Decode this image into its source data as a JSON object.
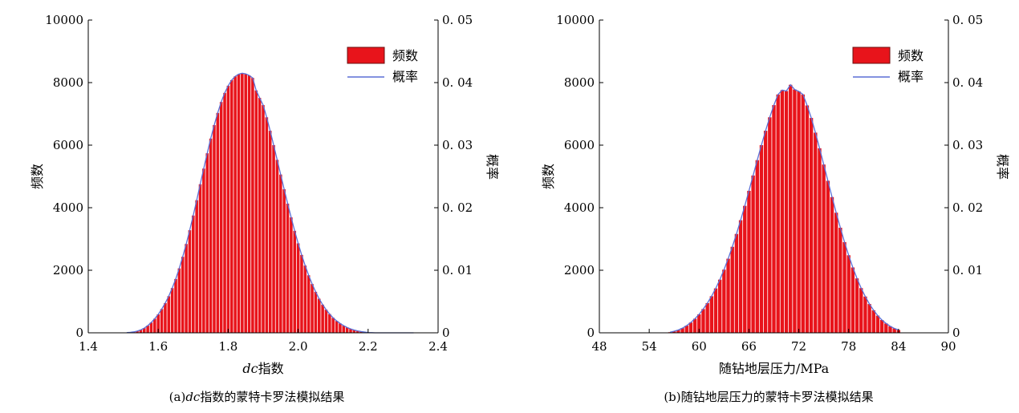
{
  "chart_data": [
    {
      "type": "bar",
      "caption_prefix": "(a)",
      "caption_italic": "dc",
      "caption_rest": "指数的蒙特卡罗法模拟结果",
      "xlabel_italic": "dc",
      "xlabel_rest": "指数",
      "ylabel": "频数",
      "y2label": "概率",
      "xlim": [
        1.4,
        2.4
      ],
      "xticks": [
        "1.4",
        "1.6",
        "1.8",
        "2.0",
        "2.2",
        "2.4"
      ],
      "ylim": [
        0,
        10000
      ],
      "yticks": [
        "0",
        "2000",
        "4000",
        "6000",
        "8000",
        "10000"
      ],
      "y2lim": [
        0,
        0.05
      ],
      "y2ticks": [
        "0",
        "0. 01",
        "0. 02",
        "0. 03",
        "0. 04",
        "0. 05"
      ],
      "legend": {
        "bar": "频数",
        "line": "概率",
        "placement": "top-right"
      },
      "bar_color": "#e8141b",
      "line_color": "#5b6fd6",
      "bin_width": 0.01,
      "x": [
        1.51,
        1.52,
        1.53,
        1.54,
        1.55,
        1.56,
        1.57,
        1.58,
        1.59,
        1.6,
        1.61,
        1.62,
        1.63,
        1.64,
        1.65,
        1.66,
        1.67,
        1.68,
        1.69,
        1.7,
        1.71,
        1.72,
        1.73,
        1.74,
        1.75,
        1.76,
        1.77,
        1.78,
        1.79,
        1.8,
        1.81,
        1.82,
        1.83,
        1.84,
        1.85,
        1.86,
        1.87,
        1.88,
        1.89,
        1.9,
        1.91,
        1.92,
        1.93,
        1.94,
        1.95,
        1.96,
        1.97,
        1.98,
        1.99,
        2.0,
        2.01,
        2.02,
        2.03,
        2.04,
        2.05,
        2.06,
        2.07,
        2.08,
        2.09,
        2.1,
        2.11,
        2.12,
        2.13,
        2.14,
        2.15,
        2.16,
        2.17,
        2.18,
        2.19,
        2.2,
        2.21,
        2.22,
        2.23,
        2.24,
        2.25,
        2.26,
        2.27,
        2.28,
        2.29,
        2.3,
        2.31,
        2.32,
        2.33
      ],
      "values": [
        5,
        15,
        30,
        55,
        95,
        150,
        230,
        330,
        450,
        590,
        760,
        950,
        1170,
        1430,
        1720,
        2060,
        2430,
        2840,
        3280,
        3750,
        4240,
        4750,
        5250,
        5740,
        6210,
        6640,
        7030,
        7380,
        7670,
        7900,
        8080,
        8200,
        8270,
        8300,
        8280,
        8230,
        8150,
        7750,
        7510,
        7280,
        6890,
        6460,
        6000,
        5530,
        5060,
        4590,
        4130,
        3690,
        3260,
        2860,
        2490,
        2150,
        1840,
        1560,
        1310,
        1090,
        900,
        740,
        600,
        480,
        380,
        300,
        230,
        170,
        125,
        90,
        60,
        40,
        25,
        10,
        5,
        0,
        0,
        0,
        0,
        0,
        0,
        0,
        0,
        0,
        0,
        0,
        0
      ]
    },
    {
      "type": "bar",
      "caption_prefix": "(b)",
      "caption_rest": "随钻地层压力的蒙特卡罗法模拟结果",
      "xlabel": "随钻地层压力/MPa",
      "ylabel": "频数",
      "y2label": "概率",
      "xlim": [
        48,
        90
      ],
      "xticks": [
        "48",
        "54",
        "60",
        "66",
        "72",
        "78",
        "84",
        "90"
      ],
      "ylim": [
        0,
        10000
      ],
      "yticks": [
        "0",
        "2000",
        "4000",
        "6000",
        "8000",
        "10000"
      ],
      "y2lim": [
        0,
        0.05
      ],
      "y2ticks": [
        "0",
        "0. 05",
        "0. 01",
        "0. 02",
        "0. 03",
        "0. 04"
      ],
      "y2ticks_ordered": [
        "0",
        "0. 01",
        "0. 02",
        "0. 03",
        "0. 04",
        "0. 05"
      ],
      "legend": {
        "bar": "频数",
        "line": "概率",
        "placement": "top-right"
      },
      "bar_color": "#e8141b",
      "line_color": "#5b6fd6",
      "bin_width": 0.5,
      "x": [
        56.5,
        57,
        57.5,
        58,
        58.5,
        59,
        59.5,
        60,
        60.5,
        61,
        61.5,
        62,
        62.5,
        63,
        63.5,
        64,
        64.5,
        65,
        65.5,
        66,
        66.5,
        67,
        67.5,
        68,
        68.5,
        69,
        69.5,
        70,
        70.5,
        71,
        71.5,
        72,
        72.5,
        73,
        73.5,
        74,
        74.5,
        75,
        75.5,
        76,
        76.5,
        77,
        77.5,
        78,
        78.5,
        79,
        79.5,
        80,
        80.5,
        81,
        81.5,
        82,
        82.5,
        83,
        83.5,
        84
      ],
      "values": [
        20,
        50,
        90,
        150,
        230,
        330,
        450,
        590,
        760,
        950,
        1170,
        1420,
        1700,
        2020,
        2370,
        2750,
        3160,
        3600,
        4060,
        4540,
        5030,
        5520,
        6000,
        6460,
        6890,
        7280,
        7620,
        7760,
        7730,
        7930,
        7780,
        7720,
        7620,
        7270,
        6870,
        6400,
        5900,
        5380,
        4860,
        4340,
        3840,
        3360,
        2900,
        2480,
        2090,
        1740,
        1430,
        1160,
        920,
        720,
        550,
        410,
        300,
        210,
        140,
        90
      ]
    }
  ]
}
